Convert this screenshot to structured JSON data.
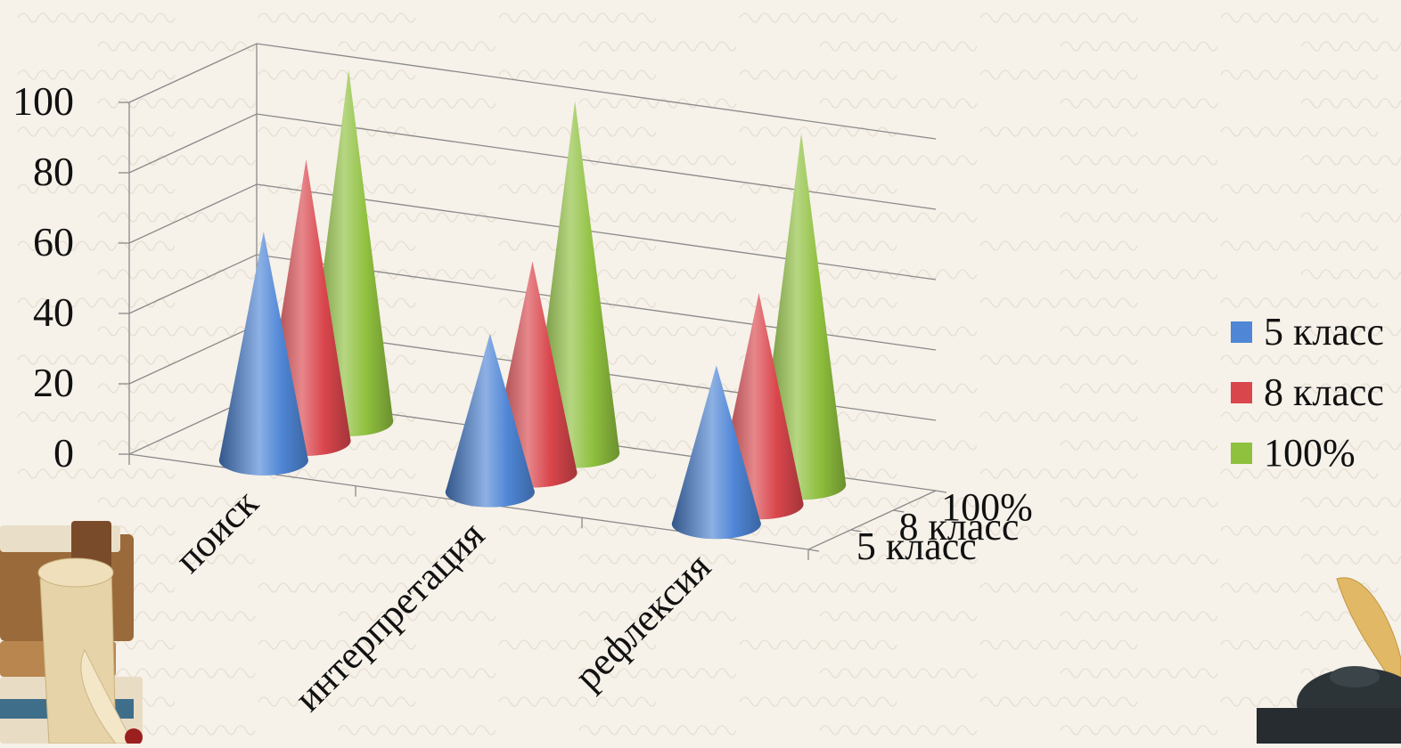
{
  "chart_data": {
    "type": "bar",
    "shape": "3d-cone",
    "categories": [
      "поиск",
      "интерпретация",
      "рефлексия"
    ],
    "series": [
      {
        "name": "5 класс",
        "values": [
          65,
          45,
          45
        ],
        "color": "#4f86d6"
      },
      {
        "name": "8 класс",
        "values": [
          80,
          60,
          60
        ],
        "color": "#d9464c"
      },
      {
        "name": "100%",
        "values": [
          100,
          100,
          100
        ],
        "color": "#8fc03e"
      }
    ],
    "ylim": [
      0,
      100
    ],
    "yticks": [
      "0",
      "20",
      "40",
      "60",
      "80",
      "100"
    ],
    "depth_labels": [
      "5 класс",
      "8 класс",
      "100%"
    ],
    "legend_position": "right",
    "grid": true
  },
  "legend": {
    "items": [
      {
        "label": "5 класс",
        "color": "#4f86d6"
      },
      {
        "label": "8 класс",
        "color": "#d9464c"
      },
      {
        "label": "100%",
        "color": "#8fc03e"
      }
    ]
  }
}
